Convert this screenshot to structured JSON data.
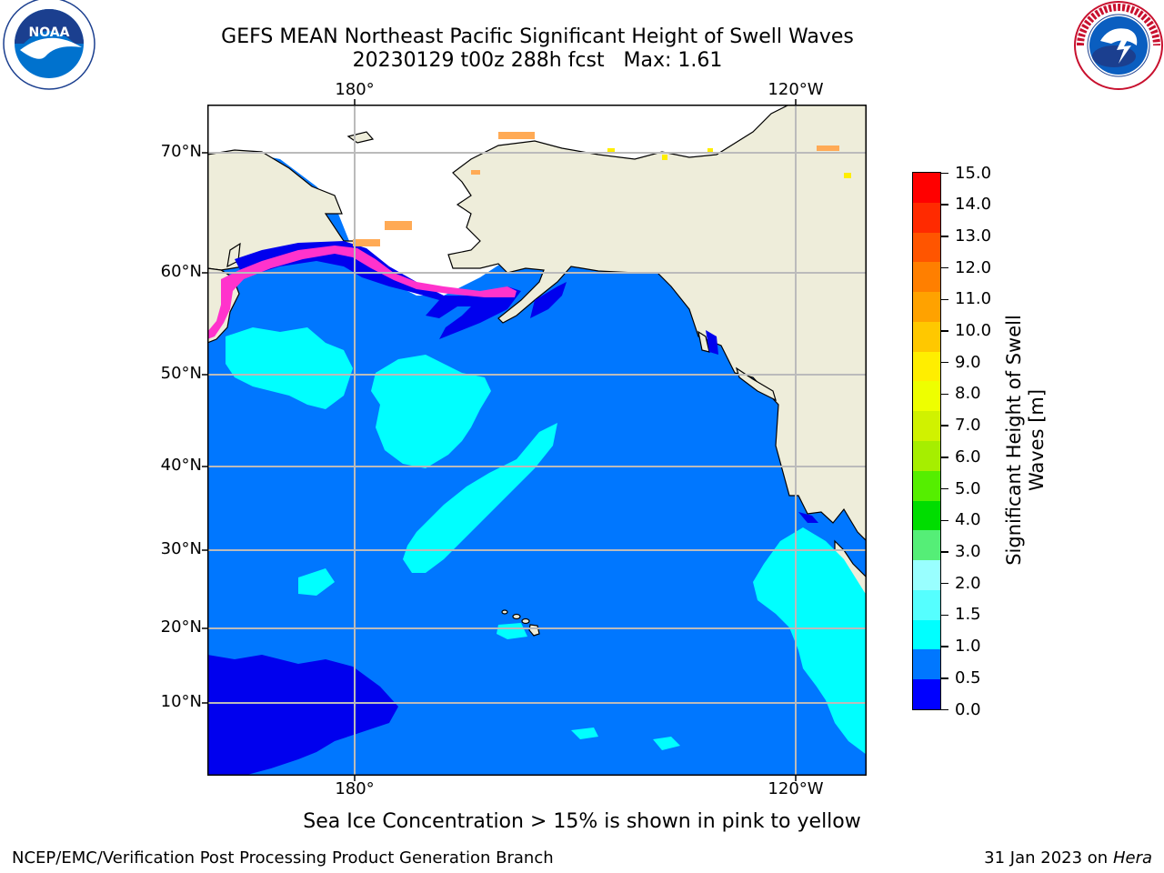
{
  "title_line1": "GEFS MEAN Northeast Pacific Significant Height of Swell Waves",
  "title_line2": "20230129 t00z 288h fcst   Max: 1.61",
  "lat_labels": [
    "70°N",
    "60°N",
    "50°N",
    "40°N",
    "30°N",
    "20°N",
    "10°N"
  ],
  "lon_labels_top": [
    "180°",
    "120°W"
  ],
  "lon_labels_bottom": [
    "180°",
    "120°W"
  ],
  "colorbar": {
    "label_line1": "Significant Height of Swell",
    "label_line2": "Waves [m]",
    "ticks": [
      "15.0",
      "14.0",
      "13.0",
      "12.0",
      "11.0",
      "10.0",
      "9.0",
      "8.0",
      "7.0",
      "6.0",
      "5.0",
      "4.0",
      "3.0",
      "2.0",
      "1.5",
      "1.0",
      "0.5",
      "0.0"
    ],
    "colors_top_to_bottom": [
      "#ff0000",
      "#ff2a00",
      "#ff5500",
      "#ff7f00",
      "#ffa200",
      "#ffc800",
      "#ffee00",
      "#eeff00",
      "#d0f200",
      "#a6ee00",
      "#55ee00",
      "#00dd00",
      "#55ee77",
      "#99ffff",
      "#55ffff",
      "#00ffff",
      "#0077ff",
      "#0000ff"
    ]
  },
  "map_colors": {
    "ocean_main": "#0077ff",
    "ocean_low": "#0000ee",
    "swell_mid": "#00ffff",
    "land": "#eeedda",
    "ice_pink": "#ff33cc",
    "ice_orange": "#ffaa55",
    "grid": "#bbbbbb"
  },
  "note": "Sea Ice Concentration > 15% is shown in pink to yellow",
  "footer_left": "NCEP/EMC/Verification Post Processing Product Generation Branch",
  "footer_right_prefix": "31 Jan 2023 on ",
  "footer_right_host": "Hera",
  "logo_left": {
    "text": "NOAA",
    "ring_text": "NATIONAL OCEANIC AND ATMOSPHERIC ADMINISTRATION · U.S. DEPARTMENT OF COMMERCE"
  },
  "logo_right": {
    "ring_text": "NATIONAL WEATHER SERVICE"
  }
}
